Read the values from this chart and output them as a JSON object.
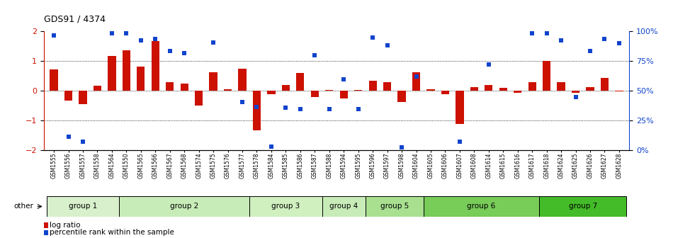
{
  "title": "GDS91 / 4374",
  "samples": [
    "GSM1555",
    "GSM1556",
    "GSM1557",
    "GSM1558",
    "GSM1564",
    "GSM1550",
    "GSM1565",
    "GSM1566",
    "GSM1567",
    "GSM1568",
    "GSM1574",
    "GSM1575",
    "GSM1576",
    "GSM1577",
    "GSM1578",
    "GSM1584",
    "GSM1585",
    "GSM1586",
    "GSM1587",
    "GSM1588",
    "GSM1594",
    "GSM1595",
    "GSM1596",
    "GSM1597",
    "GSM1598",
    "GSM1604",
    "GSM1605",
    "GSM1606",
    "GSM1607",
    "GSM1608",
    "GSM1614",
    "GSM1615",
    "GSM1616",
    "GSM1617",
    "GSM1618",
    "GSM1624",
    "GSM1625",
    "GSM1626",
    "GSM1627",
    "GSM1628"
  ],
  "log_ratio": [
    0.7,
    -0.35,
    -0.45,
    0.15,
    1.15,
    1.35,
    0.8,
    1.65,
    0.28,
    0.22,
    -0.5,
    0.62,
    0.05,
    0.72,
    -1.35,
    -0.12,
    0.18,
    0.58,
    -0.22,
    0.02,
    -0.28,
    0.02,
    0.33,
    0.28,
    -0.38,
    0.62,
    0.04,
    -0.12,
    -1.12,
    0.12,
    0.18,
    0.08,
    -0.08,
    0.28,
    1.0,
    0.28,
    -0.08,
    0.12,
    0.42,
    -0.04
  ],
  "percentile_y": [
    1.85,
    -1.55,
    -1.72,
    null,
    1.92,
    1.92,
    1.68,
    1.72,
    1.32,
    1.25,
    null,
    1.62,
    null,
    -0.38,
    -0.55,
    -1.9,
    -0.58,
    -0.62,
    1.18,
    -0.62,
    0.38,
    -0.62,
    1.78,
    1.52,
    -1.92,
    0.48,
    null,
    null,
    -1.72,
    null,
    0.88,
    null,
    null,
    1.92,
    1.92,
    1.68,
    -0.22,
    1.32,
    1.72,
    1.58
  ],
  "groups": [
    {
      "label": "group 1",
      "start": 0,
      "end": 5,
      "color": "#d8f0cc"
    },
    {
      "label": "group 2",
      "start": 5,
      "end": 14,
      "color": "#c8ecb8"
    },
    {
      "label": "group 3",
      "start": 14,
      "end": 19,
      "color": "#d0f0c0"
    },
    {
      "label": "group 4",
      "start": 19,
      "end": 22,
      "color": "#c8ecb8"
    },
    {
      "label": "group 5",
      "start": 22,
      "end": 26,
      "color": "#a8e090"
    },
    {
      "label": "group 6",
      "start": 26,
      "end": 34,
      "color": "#78cc58"
    },
    {
      "label": "group 7",
      "start": 34,
      "end": 40,
      "color": "#44bb28"
    }
  ],
  "bar_color": "#cc1100",
  "dot_color": "#1144cc",
  "ylim": [
    -2.0,
    2.0
  ],
  "yticks_left": [
    -2,
    -1,
    0,
    1,
    2
  ],
  "right_tick_labels": [
    "0%",
    "25%",
    "50%",
    "75%",
    "100%"
  ],
  "legend_log_ratio": "log ratio",
  "legend_percentile": "percentile rank within the sample",
  "bar_width": 0.55
}
